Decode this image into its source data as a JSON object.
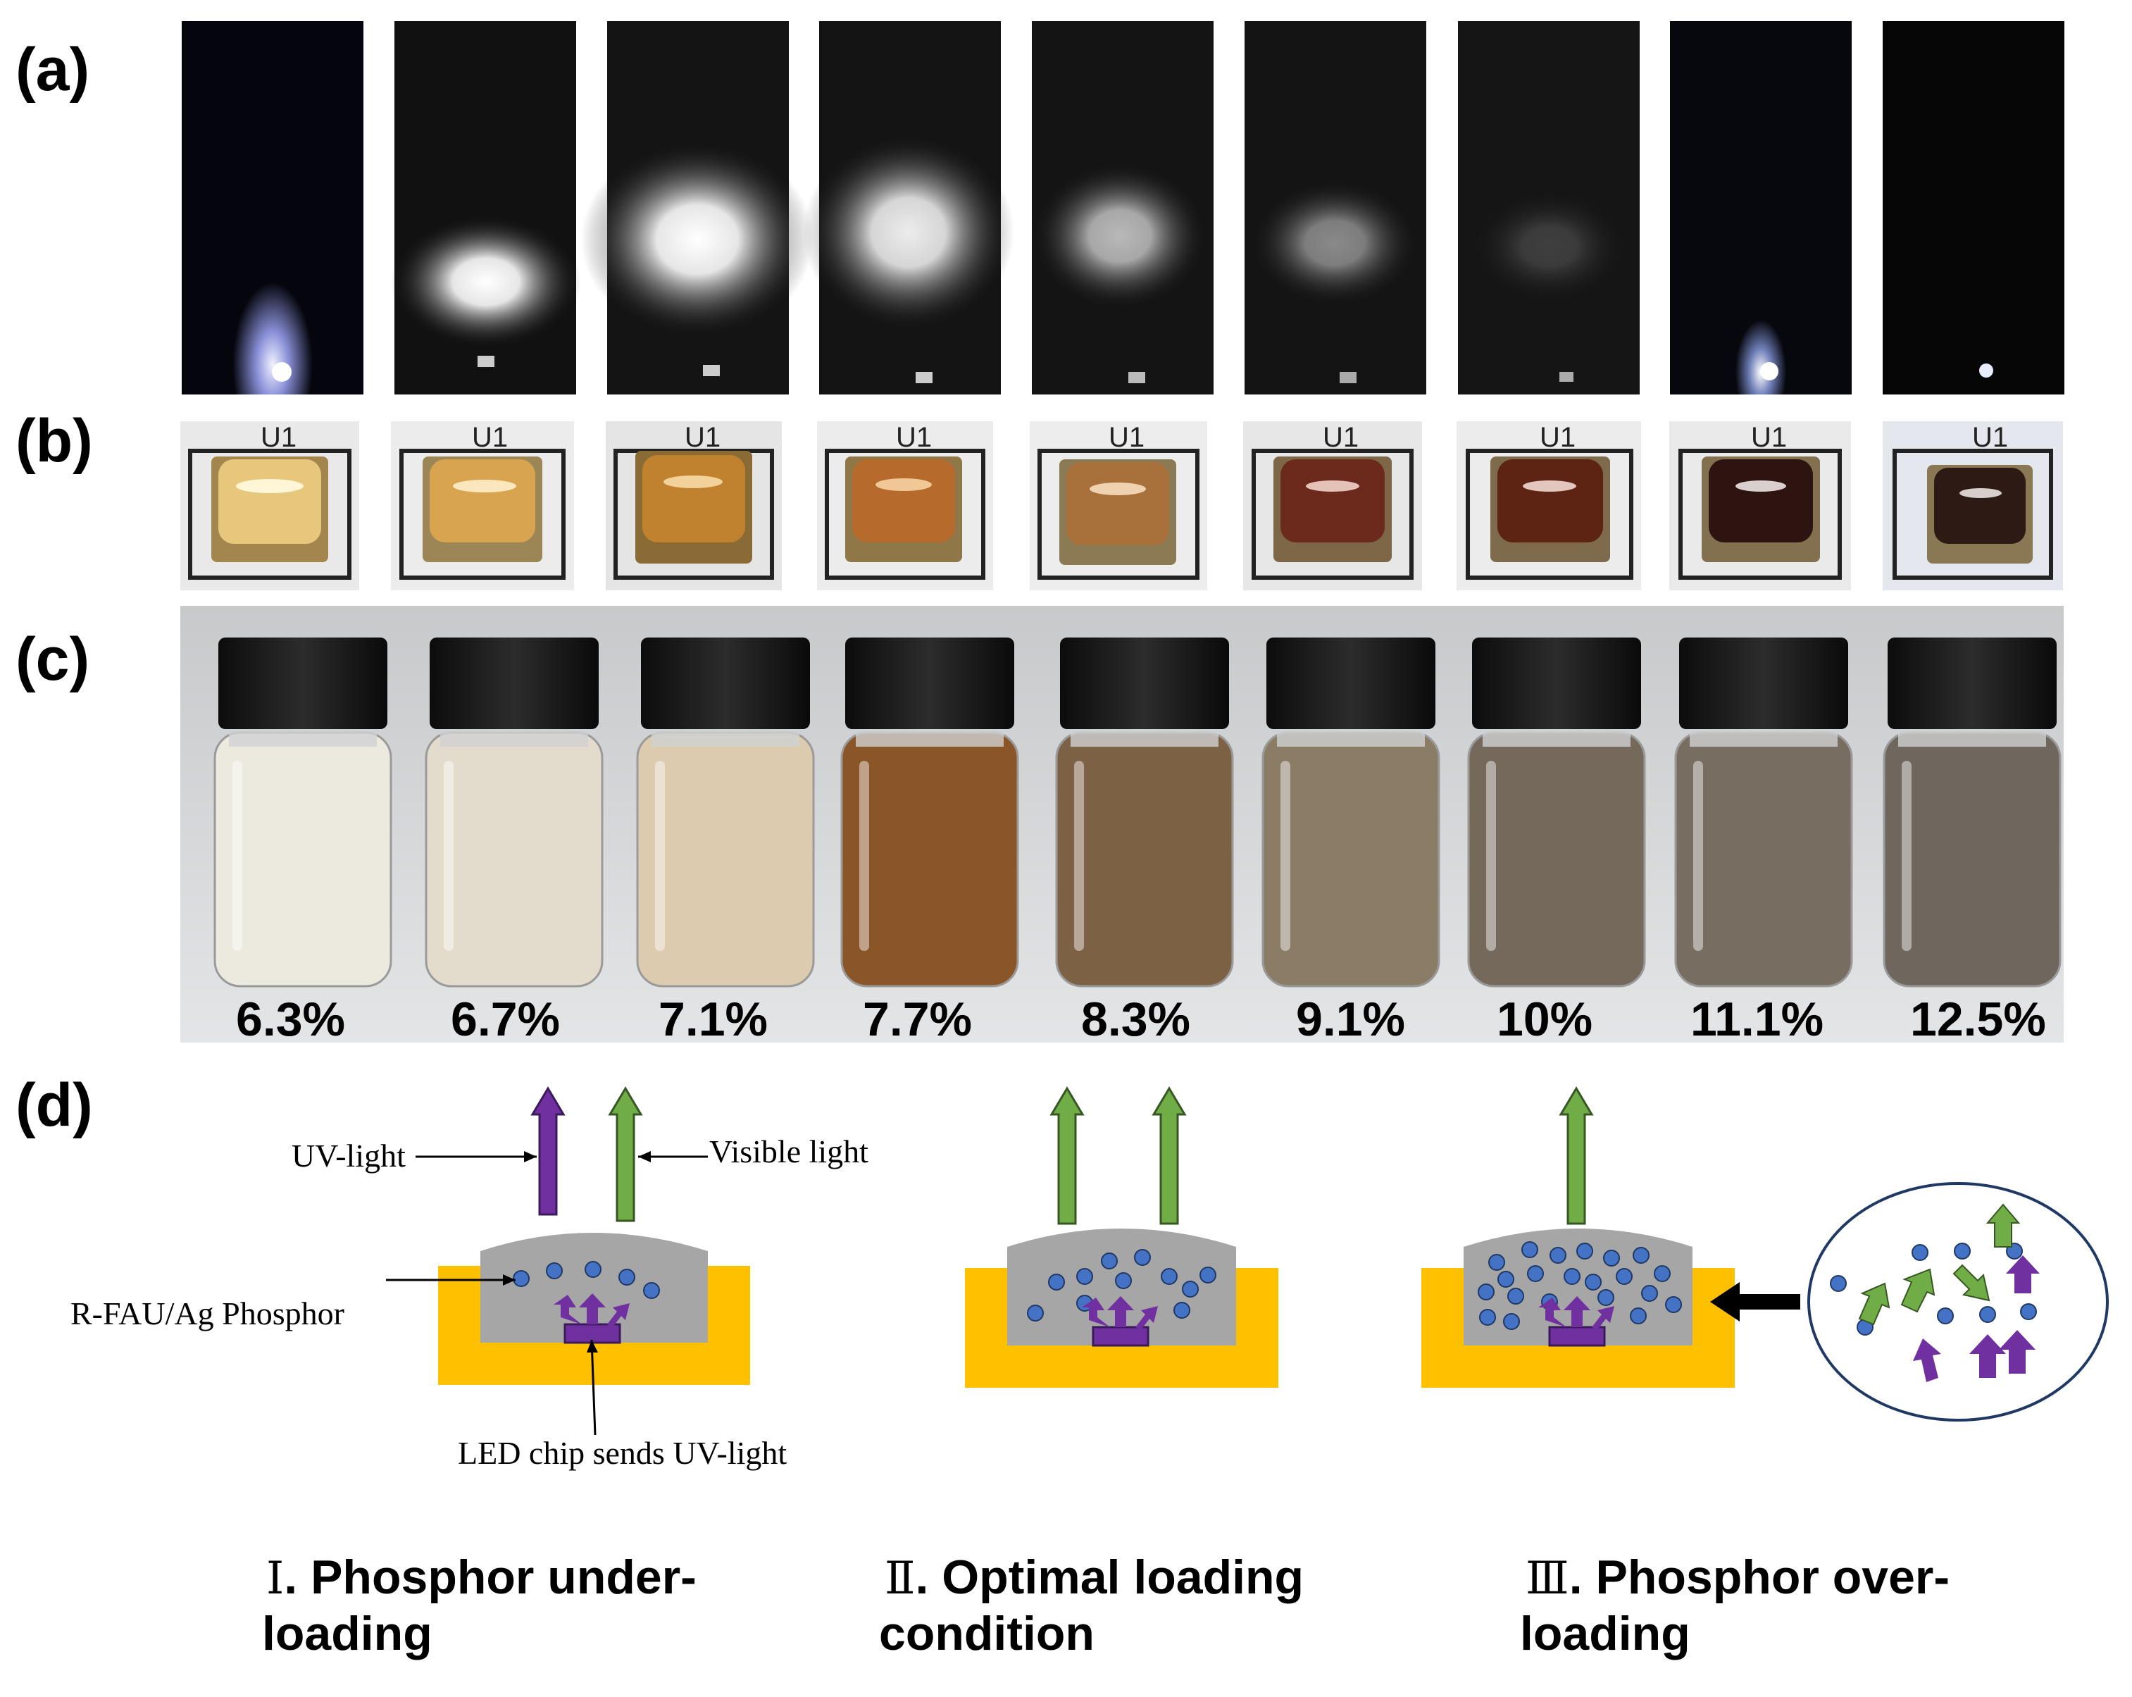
{
  "panel_labels": {
    "a": "(a)",
    "b": "(b)",
    "c": "(c)",
    "d": "(d)"
  },
  "loadings": [
    "6.3%",
    "6.7%",
    "7.1%",
    "7.7%",
    "8.3%",
    "9.1%",
    "10%",
    "11.1%",
    "12.5%"
  ],
  "board_label": "U1",
  "diagram_labels": {
    "uv_light": "UV-light",
    "visible_light": "Visible light",
    "phosphor": "R-FAU/Ag Phosphor",
    "chip": "LED chip sends UV-light"
  },
  "conditions": [
    {
      "numeral": "Ⅰ",
      "line1": ". Phosphor under-",
      "line2": "loading"
    },
    {
      "numeral": "Ⅱ",
      "line1": ". Optimal loading",
      "line2": "condition"
    },
    {
      "numeral": "Ⅲ",
      "line1": ". Phosphor over-",
      "line2": "loading"
    }
  ],
  "colors": {
    "uv_arrow": "#7030a0",
    "visible_arrow": "#70ad47",
    "cup": "#ffc000",
    "encapsulant": "#a6a6a6",
    "particle": "#4472c4"
  }
}
